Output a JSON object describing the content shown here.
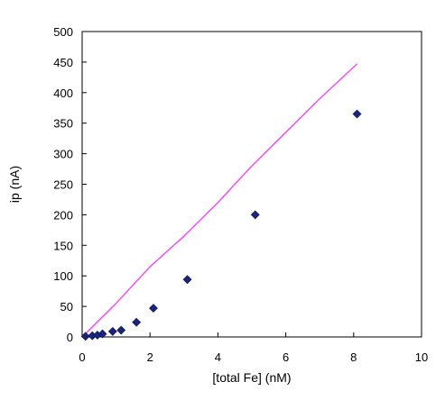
{
  "chart_data": {
    "type": "scatter",
    "xlabel": "[total Fe] (nM)",
    "ylabel": "ip (nA)",
    "xlim": [
      0,
      10
    ],
    "ylim": [
      0,
      500
    ],
    "x_ticks": [
      0,
      2,
      4,
      6,
      8,
      10
    ],
    "y_ticks": [
      0,
      50,
      100,
      150,
      200,
      250,
      300,
      350,
      400,
      450,
      500
    ],
    "grid": false,
    "series": [
      {
        "kind": "scatter",
        "marker": "diamond",
        "color": "#1a237e",
        "points": [
          {
            "x": 0.1,
            "y": 1
          },
          {
            "x": 0.3,
            "y": 2
          },
          {
            "x": 0.45,
            "y": 3
          },
          {
            "x": 0.6,
            "y": 5
          },
          {
            "x": 0.9,
            "y": 9
          },
          {
            "x": 1.15,
            "y": 11
          },
          {
            "x": 1.6,
            "y": 24
          },
          {
            "x": 2.1,
            "y": 47
          },
          {
            "x": 3.1,
            "y": 94
          },
          {
            "x": 5.1,
            "y": 200
          },
          {
            "x": 8.1,
            "y": 365
          }
        ]
      },
      {
        "kind": "line",
        "color": "#ff33ff",
        "points": [
          {
            "x": 0.0,
            "y": 0
          },
          {
            "x": 1.0,
            "y": 55
          },
          {
            "x": 2.0,
            "y": 115
          },
          {
            "x": 3.0,
            "y": 165
          },
          {
            "x": 4.0,
            "y": 220
          },
          {
            "x": 5.0,
            "y": 280
          },
          {
            "x": 6.0,
            "y": 335
          },
          {
            "x": 7.0,
            "y": 390
          },
          {
            "x": 8.1,
            "y": 447
          }
        ]
      }
    ]
  }
}
